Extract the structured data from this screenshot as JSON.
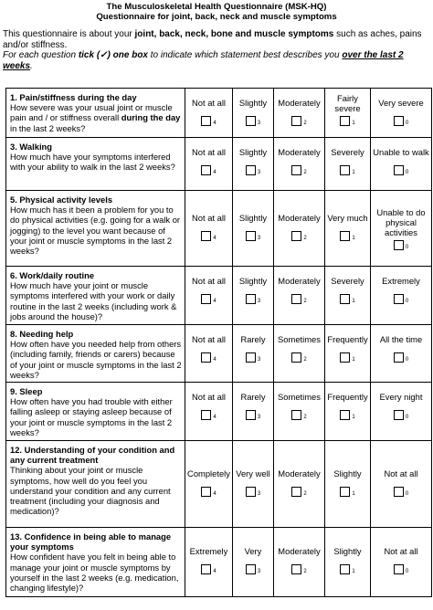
{
  "header": {
    "title": "The Musculoskeletal Health Questionnaire  (MSK-HQ)",
    "subtitle": "Questionnaire for joint, back, neck and muscle symptoms"
  },
  "intro": {
    "prefix": "This questionnaire is about your ",
    "bold": "joint, back, neck, bone and muscle symptoms",
    "suffix": " such as  aches, pains and/or stiffness."
  },
  "instruction": {
    "prefix": "For each question ",
    "tick": "tick (✓) one box",
    "middle": " to indicate  which statement best describes you ",
    "emph": "over the last 2 weeks",
    "suffix": "."
  },
  "questions": [
    {
      "title": "1. Pain/stiffness during the day",
      "text": "How severe was your usual joint or muscle pain and / or stiffness overall ",
      "bold": "during the day",
      "text2": " in the last 2 weeks?",
      "options": [
        {
          "label": "Not at all",
          "score": "4"
        },
        {
          "label": "Slightly",
          "score": "3"
        },
        {
          "label": "Moderately",
          "score": "2"
        },
        {
          "label": "Fairly severe",
          "score": "1"
        },
        {
          "label": "Very severe",
          "score": "0"
        }
      ]
    },
    {
      "title": "3. Walking",
      "text": "How much have your symptoms interfered with your ability to walk in the last 2 weeks?",
      "bold": "",
      "text2": "",
      "options": [
        {
          "label": "Not at all",
          "score": "4"
        },
        {
          "label": "Slightly",
          "score": "3"
        },
        {
          "label": "Moderately",
          "score": "2"
        },
        {
          "label": "Severely",
          "score": "1"
        },
        {
          "label": "Unable to walk",
          "score": "0"
        }
      ]
    },
    {
      "title": "5. Physical activity levels",
      "text": "How much has it been a problem for you to do physical activities (e.g. going for a walk or jogging) to the level you want because of your joint or muscle symptoms in the last 2 weeks?",
      "bold": "",
      "text2": "",
      "options": [
        {
          "label": "Not at all",
          "score": "4"
        },
        {
          "label": "Slightly",
          "score": "3"
        },
        {
          "label": "Moderately",
          "score": "2"
        },
        {
          "label": "Very much",
          "score": "1"
        },
        {
          "label": "Unable to do physical activities",
          "score": "0"
        }
      ]
    },
    {
      "title": "6. Work/daily routine",
      "text": "How much have your joint or muscle symptoms interfered with your work or daily routine in the last 2 weeks (including work & jobs around the house)?",
      "bold": "",
      "text2": "",
      "options": [
        {
          "label": "Not at all",
          "score": "4"
        },
        {
          "label": "Slightly",
          "score": "3"
        },
        {
          "label": "Moderately",
          "score": "2"
        },
        {
          "label": "Severely",
          "score": "1"
        },
        {
          "label": "Extremely",
          "score": "0"
        }
      ]
    },
    {
      "title": "8. Needing help",
      "text": "How often have you needed help from others (including family, friends or carers) because of your joint or muscle symptoms in the last 2 weeks?",
      "bold": "",
      "text2": "",
      "options": [
        {
          "label": "Not at all",
          "score": "4"
        },
        {
          "label": "Rarely",
          "score": "3"
        },
        {
          "label": "Sometimes",
          "score": "2"
        },
        {
          "label": "Frequently",
          "score": "1"
        },
        {
          "label": "All the time",
          "score": "0"
        }
      ]
    },
    {
      "title": "9. Sleep",
      "text": "How often have you had trouble with either falling asleep or staying asleep because of your joint or muscle symptoms in the last 2 weeks?",
      "bold": "",
      "text2": "",
      "options": [
        {
          "label": "Not at all",
          "score": "4"
        },
        {
          "label": "Rarely",
          "score": "3"
        },
        {
          "label": "Sometimes",
          "score": "2"
        },
        {
          "label": "Frequently",
          "score": "1"
        },
        {
          "label": "Every night",
          "score": "0"
        }
      ]
    },
    {
      "title": "12. Understanding of your condition and any current treatment",
      "text": "Thinking about your joint or muscle symptoms, how well do you feel you understand your condition and any current treatment (including your diagnosis and medication)?",
      "bold": "",
      "text2": "",
      "options": [
        {
          "label": "Completely",
          "score": "4"
        },
        {
          "label": "Very well",
          "score": "3"
        },
        {
          "label": "Moderately",
          "score": "2"
        },
        {
          "label": "Slightly",
          "score": "1"
        },
        {
          "label": "Not at all",
          "score": "0"
        }
      ]
    },
    {
      "title": "13. Confidence in being able to manage your symptoms",
      "text": "How confident have you felt in being able to manage your joint or muscle symptoms by yourself in the last 2 weeks (e.g. medication, changing lifestyle)?",
      "bold": "",
      "text2": "",
      "options": [
        {
          "label": "Extremely",
          "score": "4"
        },
        {
          "label": "Very",
          "score": "3"
        },
        {
          "label": "Moderately",
          "score": "2"
        },
        {
          "label": "Slightly",
          "score": "1"
        },
        {
          "label": "Not at all",
          "score": "0"
        }
      ]
    }
  ]
}
